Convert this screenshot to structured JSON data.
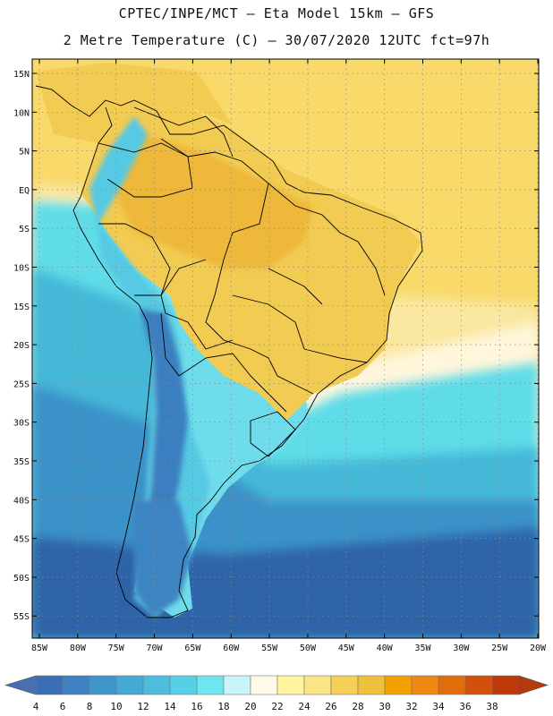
{
  "header": {
    "line1": "CPTEC/INPE/MCT –  Eta Model 15km – GFS",
    "line2": "2 Metre Temperature (C) – 30/07/2020 12UTC fct=97h"
  },
  "axes": {
    "lat_labels": [
      "15N",
      "10N",
      "5N",
      "EQ",
      "5S",
      "10S",
      "15S",
      "20S",
      "25S",
      "30S",
      "35S",
      "40S",
      "45S",
      "50S",
      "55S"
    ],
    "lon_labels": [
      "85W",
      "80W",
      "75W",
      "70W",
      "65W",
      "60W",
      "55W",
      "50W",
      "45W",
      "40W",
      "35W",
      "30W",
      "25W",
      "20W"
    ]
  },
  "colorbar": {
    "labels": [
      "4",
      "6",
      "8",
      "10",
      "12",
      "14",
      "16",
      "18",
      "20",
      "22",
      "24",
      "26",
      "28",
      "30",
      "32",
      "34",
      "36",
      "38"
    ],
    "colors": [
      "#3a6fb8",
      "#3f82c2",
      "#3f96cb",
      "#44a9d4",
      "#4dbcdd",
      "#56d0e6",
      "#6ee6f0",
      "#c8f4fb",
      "#fff9e8",
      "#fff59e",
      "#fbe483",
      "#f5cf57",
      "#efc03a",
      "#f2a200",
      "#ee8812",
      "#e06d0b",
      "#d2500a",
      "#c0390a"
    ],
    "left_end_color": "#4a6fb0",
    "right_end_color": "#b53a10"
  },
  "map": {
    "ocean_colors": {
      "warm_tropical": "#f8d96a",
      "warm_subtropical": "#fae7a0",
      "mild": "#fff6dc",
      "cool": "#5fdce8",
      "cooler": "#44b8d8",
      "cold": "#3a92c8",
      "coldest": "#2f63a8"
    },
    "land_colors": {
      "amazon": "#eeb83a",
      "brazil": "#f1cb52",
      "andes_high": "#3a7fc0",
      "andes_mid": "#56c9e3",
      "patagonia": "#3d84c2",
      "southern_cone": "#6fdcec"
    }
  }
}
